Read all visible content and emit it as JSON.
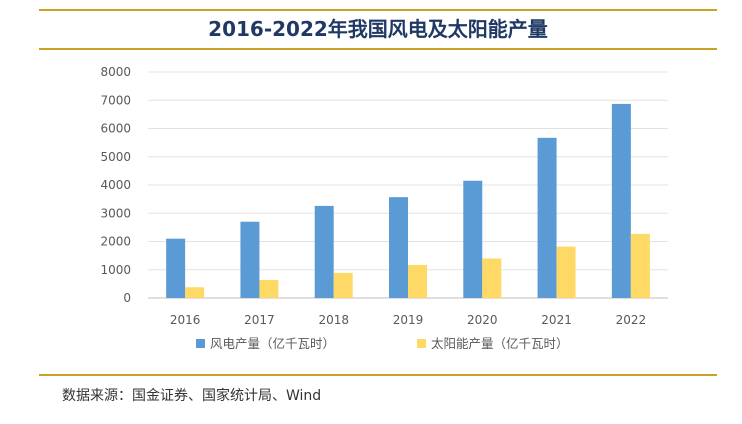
{
  "chart_data": {
    "type": "bar",
    "title": "2016-2022年我国风电及太阳能产量",
    "categories": [
      "2016",
      "2017",
      "2018",
      "2019",
      "2020",
      "2021",
      "2022"
    ],
    "series": [
      {
        "name": "风电产量（亿千瓦时）",
        "color": "#5b9bd5",
        "values": [
          2100,
          2700,
          3260,
          3570,
          4150,
          5670,
          6870
        ]
      },
      {
        "name": "太阳能产量（亿千瓦时）",
        "color": "#ffd966",
        "values": [
          380,
          640,
          890,
          1170,
          1400,
          1820,
          2270
        ]
      }
    ],
    "y_ticks": [
      "0",
      "1000",
      "2000",
      "3000",
      "4000",
      "5000",
      "6000",
      "7000",
      "8000"
    ],
    "ylim": [
      0,
      8000
    ],
    "xlabel": "",
    "ylabel": "",
    "grid": true,
    "legend": "bottom"
  },
  "footer": {
    "source_label": "数据来源：",
    "source_text": "国金证券、国家统计局、Wind"
  }
}
